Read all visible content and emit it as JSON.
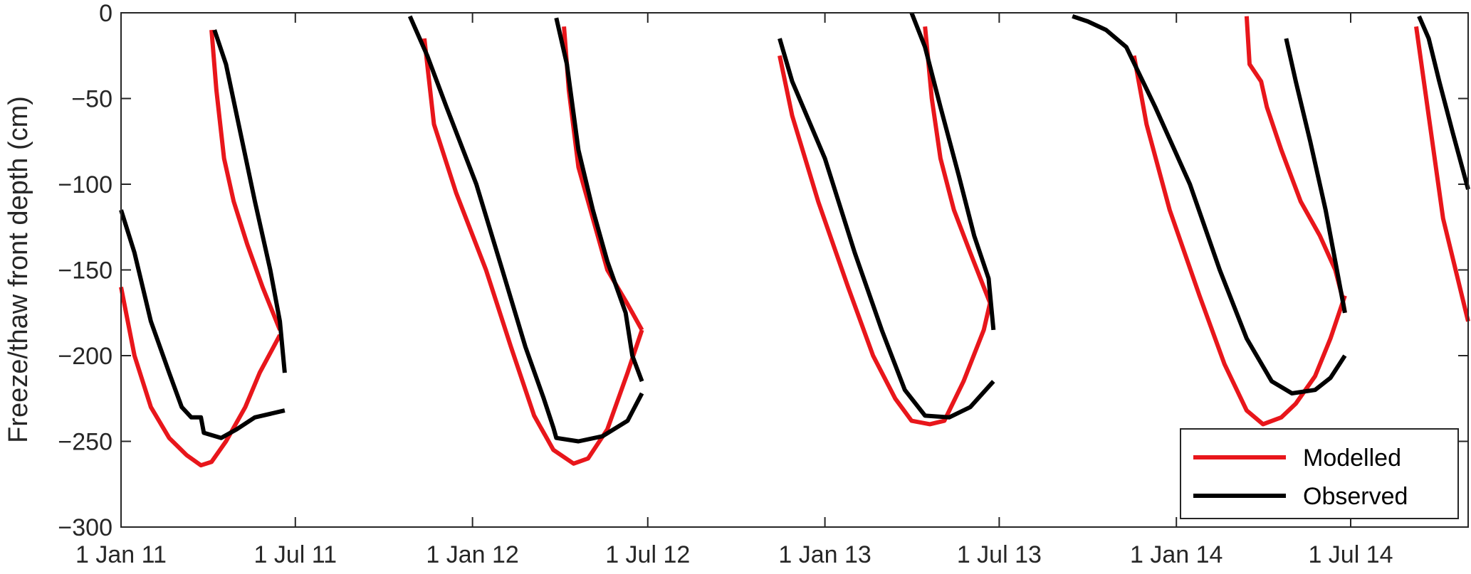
{
  "chart_data": {
    "type": "line",
    "title": "",
    "xlabel": "",
    "ylabel": "Freeze/thaw front depth (cm)",
    "ylim": [
      -300,
      0
    ],
    "xlim": [
      "2011-01-01",
      "2014-10-31"
    ],
    "yticks": [
      0,
      -50,
      -100,
      -150,
      -200,
      -250,
      -300
    ],
    "xticks": [
      {
        "date": "2011-01-01",
        "label": "1 Jan 11"
      },
      {
        "date": "2011-07-01",
        "label": "1 Jul 11"
      },
      {
        "date": "2012-01-01",
        "label": "1 Jan 12"
      },
      {
        "date": "2012-07-01",
        "label": "1 Jul 12"
      },
      {
        "date": "2013-01-01",
        "label": "1 Jan 13"
      },
      {
        "date": "2013-07-01",
        "label": "1 Jul 13"
      },
      {
        "date": "2014-01-01",
        "label": "1 Jan 14"
      },
      {
        "date": "2014-07-01",
        "label": "1 Jul 14"
      }
    ],
    "grid": false,
    "legend_position": "bottom-right",
    "series": [
      {
        "name": "Modelled",
        "color": "#e8161b",
        "segments": [
          [
            [
              "2011-01-01",
              -160
            ],
            [
              "2011-01-15",
              -200
            ],
            [
              "2011-02-01",
              -230
            ],
            [
              "2011-02-20",
              -248
            ],
            [
              "2011-03-10",
              -258
            ],
            [
              "2011-03-25",
              -264
            ],
            [
              "2011-04-05",
              -262
            ],
            [
              "2011-04-20",
              -250
            ],
            [
              "2011-05-10",
              -230
            ],
            [
              "2011-05-25",
              -210
            ],
            [
              "2011-06-15",
              -188
            ]
          ],
          [
            [
              "2011-04-05",
              -10
            ],
            [
              "2011-04-10",
              -45
            ],
            [
              "2011-04-18",
              -85
            ],
            [
              "2011-04-28",
              -110
            ],
            [
              "2011-05-12",
              -135
            ],
            [
              "2011-05-28",
              -160
            ],
            [
              "2011-06-15",
              -185
            ]
          ],
          [
            [
              "2011-11-12",
              -15
            ],
            [
              "2011-11-22",
              -65
            ],
            [
              "2011-12-15",
              -105
            ],
            [
              "2012-01-15",
              -150
            ],
            [
              "2012-02-10",
              -195
            ],
            [
              "2012-03-05",
              -235
            ],
            [
              "2012-03-25",
              -255
            ],
            [
              "2012-04-15",
              -263
            ],
            [
              "2012-04-30",
              -260
            ],
            [
              "2012-05-20",
              -243
            ],
            [
              "2012-06-10",
              -210
            ],
            [
              "2012-06-25",
              -185
            ]
          ],
          [
            [
              "2012-04-05",
              -8
            ],
            [
              "2012-04-10",
              -45
            ],
            [
              "2012-04-20",
              -90
            ],
            [
              "2012-05-05",
              -120
            ],
            [
              "2012-05-20",
              -150
            ],
            [
              "2012-06-10",
              -170
            ],
            [
              "2012-06-25",
              -185
            ]
          ],
          [
            [
              "2012-11-15",
              -25
            ],
            [
              "2012-11-28",
              -60
            ],
            [
              "2012-12-25",
              -110
            ],
            [
              "2013-01-25",
              -160
            ],
            [
              "2013-02-20",
              -200
            ],
            [
              "2013-03-15",
              -225
            ],
            [
              "2013-04-01",
              -238
            ],
            [
              "2013-04-20",
              -240
            ],
            [
              "2013-05-05",
              -238
            ],
            [
              "2013-05-25",
              -215
            ],
            [
              "2013-06-15",
              -185
            ],
            [
              "2013-06-22",
              -168
            ]
          ],
          [
            [
              "2013-04-15",
              -8
            ],
            [
              "2013-04-22",
              -50
            ],
            [
              "2013-05-01",
              -85
            ],
            [
              "2013-05-15",
              -115
            ],
            [
              "2013-06-01",
              -140
            ],
            [
              "2013-06-15",
              -160
            ],
            [
              "2013-06-22",
              -170
            ]
          ],
          [
            [
              "2013-11-18",
              -25
            ],
            [
              "2013-12-01",
              -65
            ],
            [
              "2013-12-25",
              -115
            ],
            [
              "2014-01-25",
              -165
            ],
            [
              "2014-02-20",
              -205
            ],
            [
              "2014-03-15",
              -232
            ],
            [
              "2014-04-01",
              -240
            ],
            [
              "2014-04-20",
              -236
            ],
            [
              "2014-05-05",
              -228
            ],
            [
              "2014-05-25",
              -212
            ],
            [
              "2014-06-10",
              -190
            ],
            [
              "2014-06-25",
              -165
            ]
          ],
          [
            [
              "2014-03-15",
              -2
            ],
            [
              "2014-03-18",
              -30
            ],
            [
              "2014-03-30",
              -40
            ],
            [
              "2014-04-05",
              -55
            ],
            [
              "2014-04-20",
              -80
            ],
            [
              "2014-05-10",
              -110
            ],
            [
              "2014-05-30",
              -130
            ],
            [
              "2014-06-15",
              -150
            ],
            [
              "2014-06-22",
              -165
            ],
            [
              "2014-06-25",
              -175
            ]
          ],
          [
            [
              "2014-09-07",
              -8
            ],
            [
              "2014-09-15",
              -40
            ],
            [
              "2014-09-25",
              -80
            ],
            [
              "2014-10-05",
              -120
            ],
            [
              "2014-10-18",
              -150
            ],
            [
              "2014-10-31",
              -180
            ]
          ]
        ]
      },
      {
        "name": "Observed",
        "color": "#000000",
        "segments": [
          [
            [
              "2011-01-01",
              -115
            ],
            [
              "2011-01-15",
              -140
            ],
            [
              "2011-02-01",
              -180
            ],
            [
              "2011-02-20",
              -210
            ],
            [
              "2011-03-05",
              -230
            ],
            [
              "2011-03-15",
              -236
            ],
            [
              "2011-03-25",
              -236
            ],
            [
              "2011-03-28",
              -245
            ],
            [
              "2011-04-15",
              -248
            ],
            [
              "2011-05-01",
              -243
            ],
            [
              "2011-05-20",
              -236
            ],
            [
              "2011-06-20",
              -232
            ]
          ],
          [
            [
              "2011-04-08",
              -10
            ],
            [
              "2011-04-20",
              -30
            ],
            [
              "2011-05-05",
              -70
            ],
            [
              "2011-05-20",
              -110
            ],
            [
              "2011-06-05",
              -150
            ],
            [
              "2011-06-15",
              -180
            ],
            [
              "2011-06-20",
              -210
            ]
          ],
          [
            [
              "2011-10-28",
              -2
            ],
            [
              "2011-11-15",
              -25
            ],
            [
              "2011-12-05",
              -55
            ],
            [
              "2012-01-05",
              -100
            ],
            [
              "2012-02-01",
              -150
            ],
            [
              "2012-02-25",
              -195
            ],
            [
              "2012-03-15",
              -225
            ],
            [
              "2012-03-25",
              -242
            ],
            [
              "2012-03-28",
              -248
            ],
            [
              "2012-04-20",
              -250
            ],
            [
              "2012-05-15",
              -247
            ],
            [
              "2012-06-10",
              -238
            ],
            [
              "2012-06-25",
              -222
            ]
          ],
          [
            [
              "2012-03-28",
              -3
            ],
            [
              "2012-04-08",
              -30
            ],
            [
              "2012-04-20",
              -80
            ],
            [
              "2012-05-05",
              -115
            ],
            [
              "2012-05-20",
              -145
            ],
            [
              "2012-06-08",
              -175
            ],
            [
              "2012-06-15",
              -200
            ],
            [
              "2012-06-25",
              -215
            ]
          ],
          [
            [
              "2012-11-15",
              -15
            ],
            [
              "2012-11-28",
              -40
            ],
            [
              "2013-01-01",
              -85
            ],
            [
              "2013-02-01",
              -140
            ],
            [
              "2013-03-01",
              -185
            ],
            [
              "2013-03-25",
              -220
            ],
            [
              "2013-04-15",
              -235
            ],
            [
              "2013-05-10",
              -236
            ],
            [
              "2013-06-01",
              -230
            ],
            [
              "2013-06-25",
              -215
            ]
          ],
          [
            [
              "2013-04-01",
              0
            ],
            [
              "2013-04-15",
              -20
            ],
            [
              "2013-05-01",
              -55
            ],
            [
              "2013-05-20",
              -95
            ],
            [
              "2013-06-05",
              -130
            ],
            [
              "2013-06-20",
              -155
            ],
            [
              "2013-06-25",
              -185
            ]
          ],
          [
            [
              "2013-09-15",
              -2
            ],
            [
              "2013-10-01",
              -5
            ],
            [
              "2013-10-20",
              -10
            ],
            [
              "2013-11-10",
              -20
            ],
            [
              "2013-12-10",
              -55
            ],
            [
              "2014-01-15",
              -100
            ],
            [
              "2014-02-15",
              -150
            ],
            [
              "2014-03-15",
              -190
            ],
            [
              "2014-04-10",
              -215
            ],
            [
              "2014-05-01",
              -222
            ],
            [
              "2014-05-25",
              -220
            ],
            [
              "2014-06-10",
              -213
            ],
            [
              "2014-06-25",
              -200
            ]
          ],
          [
            [
              "2014-04-25",
              -15
            ],
            [
              "2014-05-05",
              -40
            ],
            [
              "2014-05-20",
              -75
            ],
            [
              "2014-06-05",
              -115
            ],
            [
              "2014-06-15",
              -145
            ],
            [
              "2014-06-25",
              -175
            ]
          ],
          [
            [
              "2014-09-10",
              -2
            ],
            [
              "2014-09-20",
              -15
            ],
            [
              "2014-10-01",
              -40
            ],
            [
              "2014-10-15",
              -70
            ],
            [
              "2014-10-31",
              -103
            ]
          ]
        ]
      }
    ]
  }
}
